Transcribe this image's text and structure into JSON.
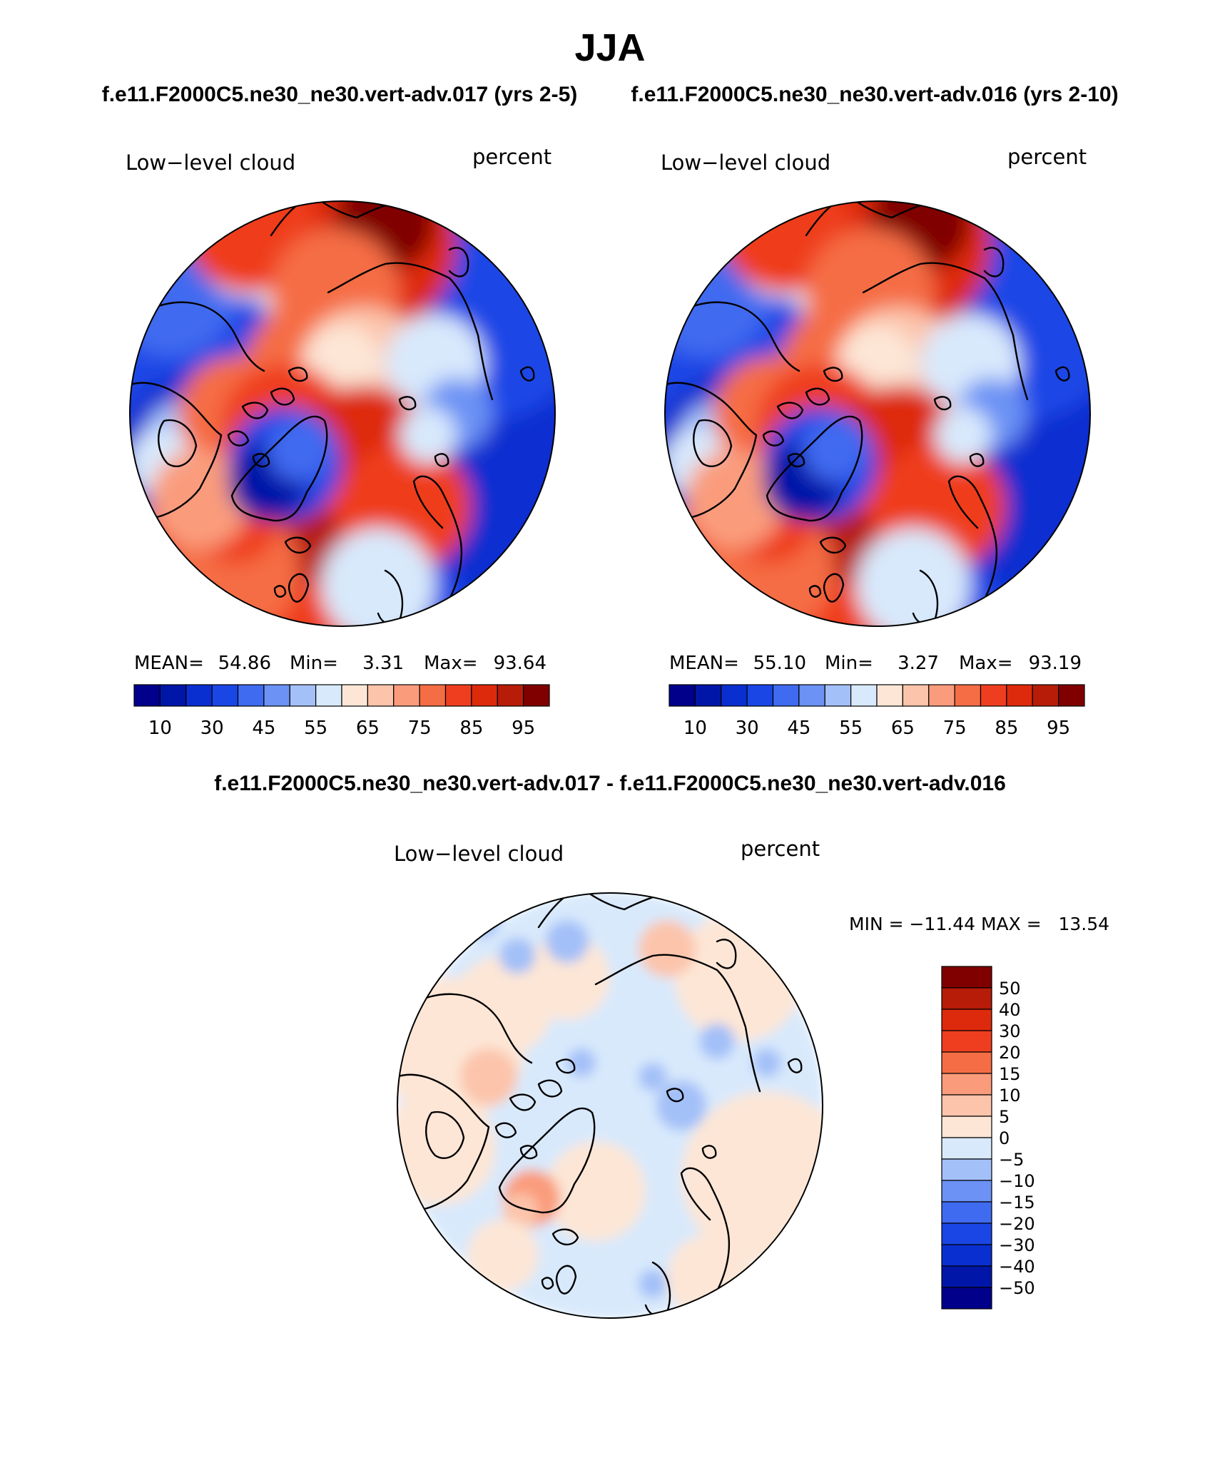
{
  "title": "JJA",
  "subtitle_left": "f.e11.F2000C5.ne30_ne30.vert-adv.017 (yrs 2-5)",
  "subtitle_right": "f.e11.F2000C5.ne30_ne30.vert-adv.016 (yrs 2-10)",
  "diff_title": "f.e11.F2000C5.ne30_ne30.vert-adv.017 - f.e11.F2000C5.ne30_ne30.vert-adv.016",
  "panels": [
    {
      "variable": "Low−level cloud",
      "units": "percent",
      "stats": {
        "mean_label": "MEAN=",
        "mean": "54.86",
        "min_label": "Min=",
        "min": "3.31",
        "max_label": "Max=",
        "max": "93.64"
      }
    },
    {
      "variable": "Low−level cloud",
      "units": "percent",
      "stats": {
        "mean_label": "MEAN=",
        "mean": "55.10",
        "min_label": "Min=",
        "min": "3.27",
        "max_label": "Max=",
        "max": "93.19"
      }
    }
  ],
  "diff_panel": {
    "variable": "Low−level cloud",
    "units": "percent",
    "minmax_text": "MIN = −11.44 MAX =   13.54"
  },
  "colorbar_abs": {
    "colors": [
      "#00008b",
      "#0016a8",
      "#0a2fd0",
      "#1a46e6",
      "#3f6bf0",
      "#6b92f4",
      "#a3c0f8",
      "#d8e9fc",
      "#fde6d6",
      "#fcc4ab",
      "#fa9c7c",
      "#f56d45",
      "#ef3e1f",
      "#de2a0c",
      "#b71c08",
      "#800000"
    ],
    "tick_labels": [
      "10",
      "30",
      "45",
      "55",
      "65",
      "75",
      "85",
      "95"
    ]
  },
  "colorbar_diff": {
    "colors": [
      "#800000",
      "#b71c08",
      "#de2a0c",
      "#ef3e1f",
      "#f56d45",
      "#fa9c7c",
      "#fcc4ab",
      "#fde6d6",
      "#d8e9fc",
      "#a3c0f8",
      "#6b92f4",
      "#3f6bf0",
      "#1a46e6",
      "#0a2fd0",
      "#0016a8",
      "#00008b"
    ],
    "tick_labels": [
      "50",
      "40",
      "30",
      "20",
      "15",
      "10",
      "5",
      "0",
      "−5",
      "−10",
      "−15",
      "−20",
      "−30",
      "−40",
      "−50"
    ]
  }
}
